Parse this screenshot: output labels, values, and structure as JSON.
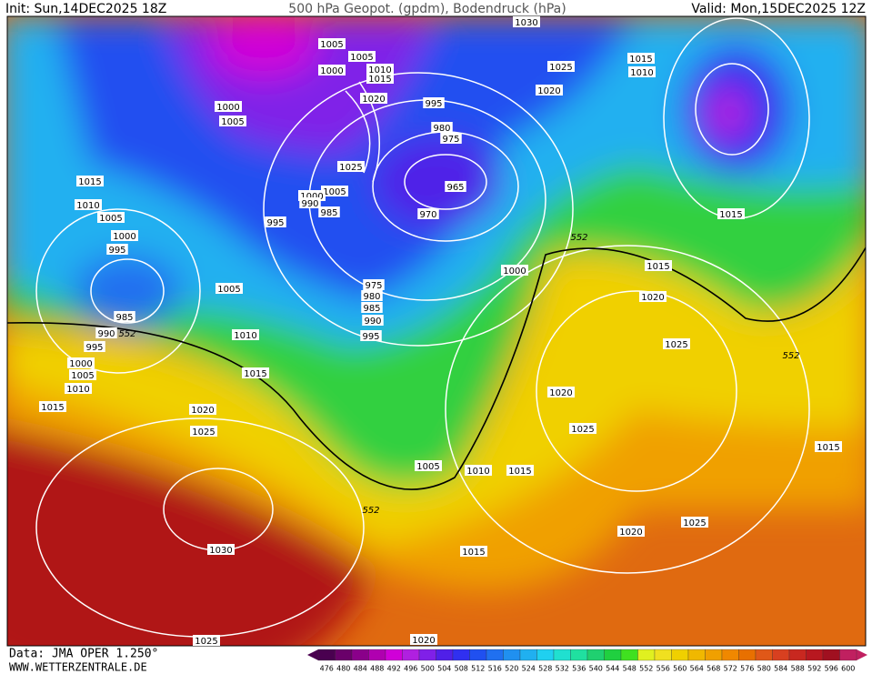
{
  "header": {
    "init": "Init: Sun,14DEC2025 18Z",
    "title": "500 hPa Geopot. (gpdm), Bodendruck (hPa)",
    "valid": "Valid: Mon,15DEC2025 12Z"
  },
  "footer": {
    "data": "Data: JMA OPER 1.250°",
    "site": "WWW.WETTERZENTRALE.DE"
  },
  "isobar_labels": [
    1005,
    1005,
    1000,
    1010,
    1015,
    1030,
    1025,
    1015,
    1010,
    1020,
    1000,
    1005,
    1020,
    995,
    980,
    975,
    1025,
    965,
    1005,
    1000,
    990,
    985,
    995,
    970,
    1015,
    1010,
    1005,
    1000,
    995,
    1015,
    552,
    1000,
    1015,
    1020,
    1005,
    975,
    980,
    985,
    990,
    995,
    985,
    990,
    552,
    995,
    1000,
    1005,
    1010,
    1015,
    1010,
    1015,
    1025,
    552,
    1020,
    1020,
    1025,
    1025,
    1015,
    1005,
    1010,
    1015,
    552,
    1030,
    1020,
    1025,
    1015,
    1025,
    1020
  ],
  "colorbar": {
    "ticks": [
      476,
      480,
      484,
      488,
      492,
      496,
      500,
      504,
      508,
      512,
      516,
      520,
      524,
      528,
      532,
      536,
      540,
      544,
      548,
      552,
      556,
      560,
      564,
      568,
      572,
      576,
      580,
      584,
      588,
      592,
      596,
      600
    ],
    "colors": [
      "#4a0050",
      "#6a006a",
      "#8a008a",
      "#b000b0",
      "#d000d8",
      "#b020e0",
      "#8020e8",
      "#5020e8",
      "#3030f0",
      "#2050f0",
      "#2070f0",
      "#2090f0",
      "#20b0f0",
      "#20d0f0",
      "#20e0d0",
      "#20e0a0",
      "#20d070",
      "#20d040",
      "#40e020",
      "#e0f020",
      "#f0e020",
      "#f0d000",
      "#f0b800",
      "#f0a000",
      "#f08800",
      "#e87000",
      "#e05818",
      "#d84020",
      "#c82820",
      "#b81820",
      "#a01020",
      "#c02060"
    ]
  }
}
